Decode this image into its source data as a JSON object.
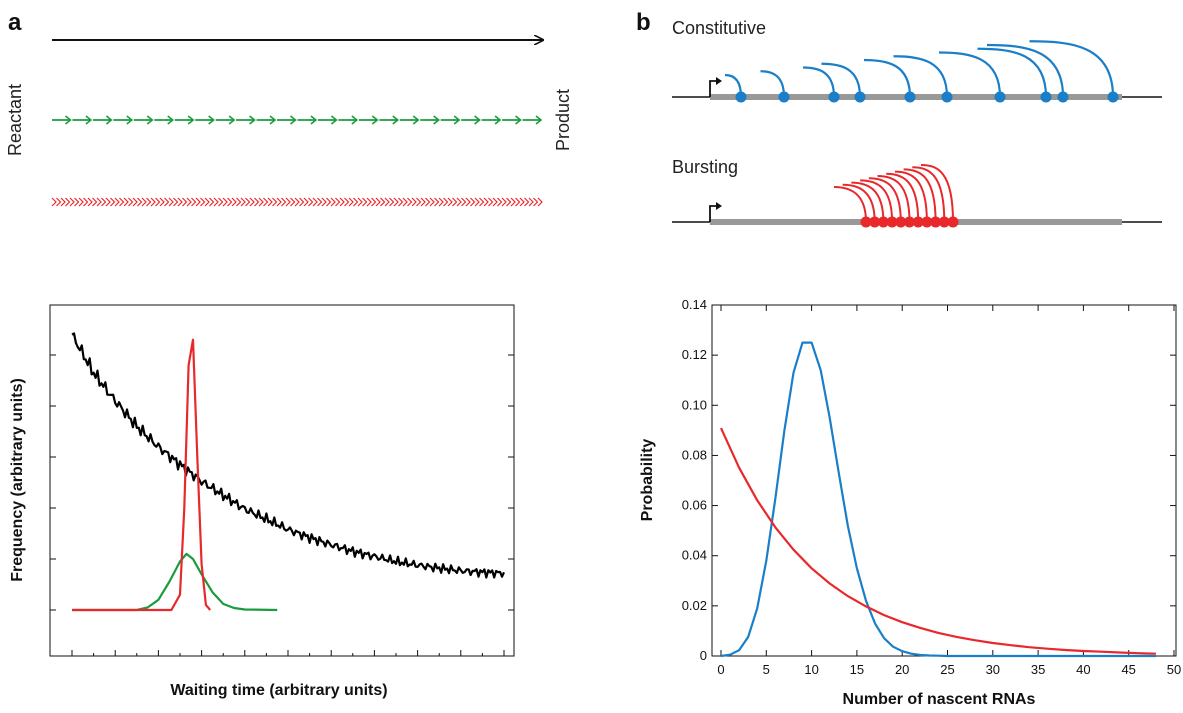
{
  "panel_a": {
    "letter": "a",
    "reactant_label": "Reactant",
    "product_label": "Product",
    "arrow_colors": {
      "direct": "#000000",
      "multistep": "#1a9c3e",
      "many_step": "#e8282b"
    }
  },
  "panel_b": {
    "letter": "b",
    "constitutive_label": "Constitutive",
    "bursting_label": "Bursting",
    "colors": {
      "constitutive": "#1a7ec8",
      "bursting": "#e8282b",
      "gene": "#999999"
    }
  },
  "chart_data": [
    {
      "type": "line",
      "xlabel": "Waiting time (arbitrary units)",
      "ylabel": "Frequency (arbitrary units)",
      "grid": false,
      "series": [
        {
          "color": "#000000",
          "x": [
            0,
            1,
            2,
            3,
            4,
            5,
            6,
            7,
            8,
            9,
            10,
            11,
            12,
            13,
            14,
            15,
            16,
            17,
            18,
            19,
            20
          ],
          "y": [
            5.4,
            4.65,
            4.1,
            3.6,
            3.2,
            2.85,
            2.52,
            2.25,
            1.98,
            1.78,
            1.58,
            1.42,
            1.28,
            1.15,
            1.05,
            0.95,
            0.88,
            0.82,
            0.77,
            0.74,
            0.72
          ]
        },
        {
          "color": "#1a9c3e",
          "x": [
            0,
            3,
            3.5,
            4,
            4.5,
            5,
            5.3,
            5.6,
            6,
            6.5,
            7,
            7.5,
            8,
            9.5
          ],
          "y": [
            0,
            0,
            0.05,
            0.2,
            0.55,
            0.95,
            1.1,
            1.0,
            0.7,
            0.35,
            0.12,
            0.04,
            0.01,
            0
          ]
        },
        {
          "color": "#e8282b",
          "x": [
            0,
            4.6,
            5.0,
            5.2,
            5.4,
            5.6,
            5.8,
            6.0,
            6.2,
            6.4
          ],
          "y": [
            0,
            0,
            0.3,
            2.0,
            4.8,
            5.3,
            3.0,
            0.9,
            0.1,
            0
          ]
        }
      ]
    },
    {
      "type": "line",
      "xlabel": "Number of nascent RNAs",
      "ylabel": "Probability",
      "xlim": [
        0,
        50
      ],
      "ylim": [
        0,
        0.14
      ],
      "xticks": [
        "0",
        "5",
        "10",
        "15",
        "20",
        "25",
        "30",
        "35",
        "40",
        "45",
        "50"
      ],
      "yticks": [
        "0",
        "0.02",
        "0.04",
        "0.06",
        "0.08",
        "0.10",
        "0.12",
        "0.14"
      ],
      "grid": false,
      "series": [
        {
          "color": "#1a7ec8",
          "x": [
            0,
            1,
            2,
            3,
            4,
            5,
            6,
            7,
            8,
            9,
            10,
            11,
            12,
            13,
            14,
            15,
            16,
            17,
            18,
            19,
            20,
            21,
            22,
            23,
            24,
            25,
            30,
            35,
            40,
            45,
            48
          ],
          "y": [
            0.0,
            0.0005,
            0.0023,
            0.0076,
            0.019,
            0.038,
            0.063,
            0.09,
            0.113,
            0.125,
            0.125,
            0.114,
            0.095,
            0.073,
            0.052,
            0.035,
            0.022,
            0.013,
            0.0071,
            0.0037,
            0.0019,
            0.0009,
            0.0004,
            0.0002,
            0.0001,
            0.0,
            0.0,
            0.0,
            0.0,
            0.0,
            0.0
          ]
        },
        {
          "color": "#e8282b",
          "x": [
            0,
            2,
            4,
            6,
            8,
            10,
            12,
            14,
            16,
            18,
            20,
            22,
            24,
            26,
            28,
            30,
            32,
            34,
            36,
            38,
            40,
            42,
            44,
            46,
            48
          ],
          "y": [
            0.0909,
            0.0751,
            0.0621,
            0.0513,
            0.0424,
            0.035,
            0.0289,
            0.0239,
            0.0198,
            0.0163,
            0.0135,
            0.0112,
            0.0092,
            0.0076,
            0.0063,
            0.0052,
            0.0043,
            0.0035,
            0.0029,
            0.0024,
            0.002,
            0.0017,
            0.0014,
            0.0011,
            0.0009
          ]
        }
      ]
    }
  ]
}
